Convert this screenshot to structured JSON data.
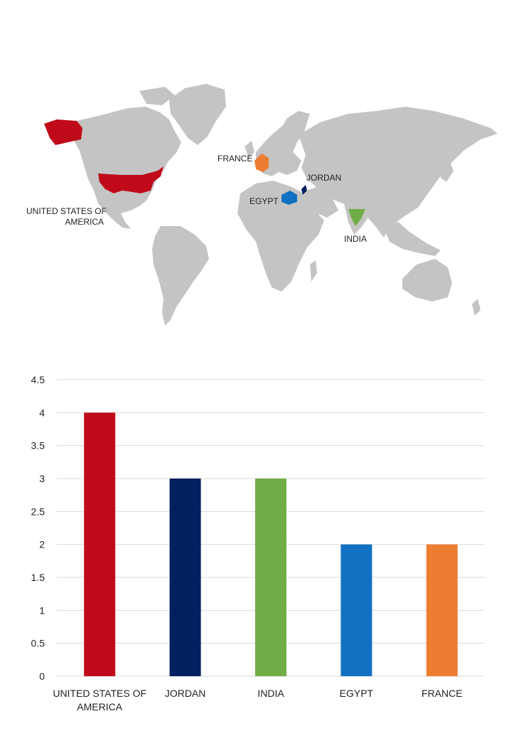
{
  "map": {
    "labels": {
      "usa": [
        "UNITED STATES OF",
        "AMERICA"
      ],
      "france": "FRANCE",
      "jordan": "JORDAN",
      "egypt": "EGYPT",
      "india": "INDIA"
    },
    "land_color": "#c4c4c4",
    "highlight_colors": {
      "usa": "#c00a19",
      "jordan": "#002060",
      "india": "#70ad47",
      "egypt": "#1170c1",
      "france": "#ed7d31"
    }
  },
  "chart_data": {
    "type": "bar",
    "categories": [
      [
        "UNITED STATES OF",
        "AMERICA"
      ],
      [
        "JORDAN"
      ],
      [
        "INDIA"
      ],
      [
        "EGYPT"
      ],
      [
        "FRANCE"
      ]
    ],
    "values": [
      4,
      3,
      3,
      2,
      2
    ],
    "colors": [
      "#c00a19",
      "#002060",
      "#70ad47",
      "#1170c1",
      "#ed7d31"
    ],
    "ylim": [
      0,
      4.5
    ],
    "yticks": [
      "0",
      "0.5",
      "1",
      "1.5",
      "2",
      "2.5",
      "3",
      "3.5",
      "4",
      "4.5"
    ],
    "grid": true,
    "title": "",
    "xlabel": "",
    "ylabel": ""
  }
}
